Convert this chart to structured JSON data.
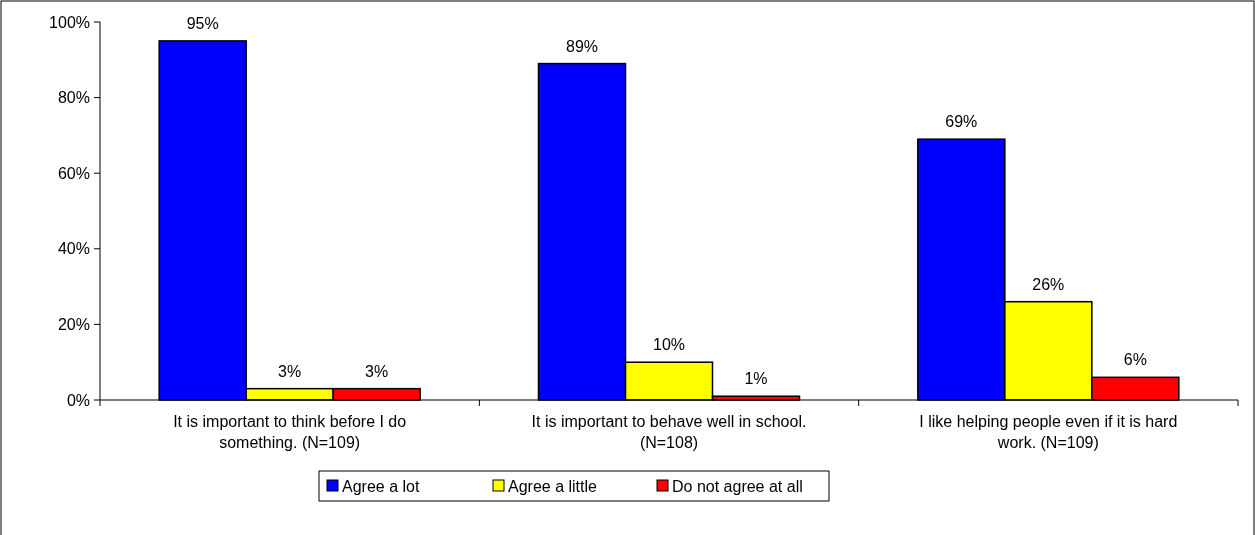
{
  "chart_data": {
    "type": "bar",
    "categories": [
      "It is important to think before I do something. (N=109)",
      "It is important to behave well in school. (N=108)",
      "I like helping people even if it is hard work. (N=109)"
    ],
    "series": [
      {
        "name": "Agree a lot",
        "color": "#0000ff",
        "values": [
          95,
          89,
          69
        ],
        "value_labels": [
          "95%",
          "89%",
          "69%"
        ]
      },
      {
        "name": "Agree a little",
        "color": "#ffff00",
        "values": [
          3,
          10,
          26
        ],
        "value_labels": [
          "3%",
          "10%",
          "26%"
        ]
      },
      {
        "name": "Do not agree at all",
        "color": "#ff0000",
        "values": [
          3,
          1,
          6
        ],
        "value_labels": [
          "3%",
          "1%",
          "6%"
        ]
      }
    ],
    "ylim": [
      0,
      100
    ],
    "yticks": [
      {
        "value": 0,
        "label": "0%"
      },
      {
        "value": 20,
        "label": "20%"
      },
      {
        "value": 40,
        "label": "40%"
      },
      {
        "value": 60,
        "label": "60%"
      },
      {
        "value": 80,
        "label": "80%"
      },
      {
        "value": 100,
        "label": "100%"
      }
    ],
    "legend": "bottom"
  }
}
